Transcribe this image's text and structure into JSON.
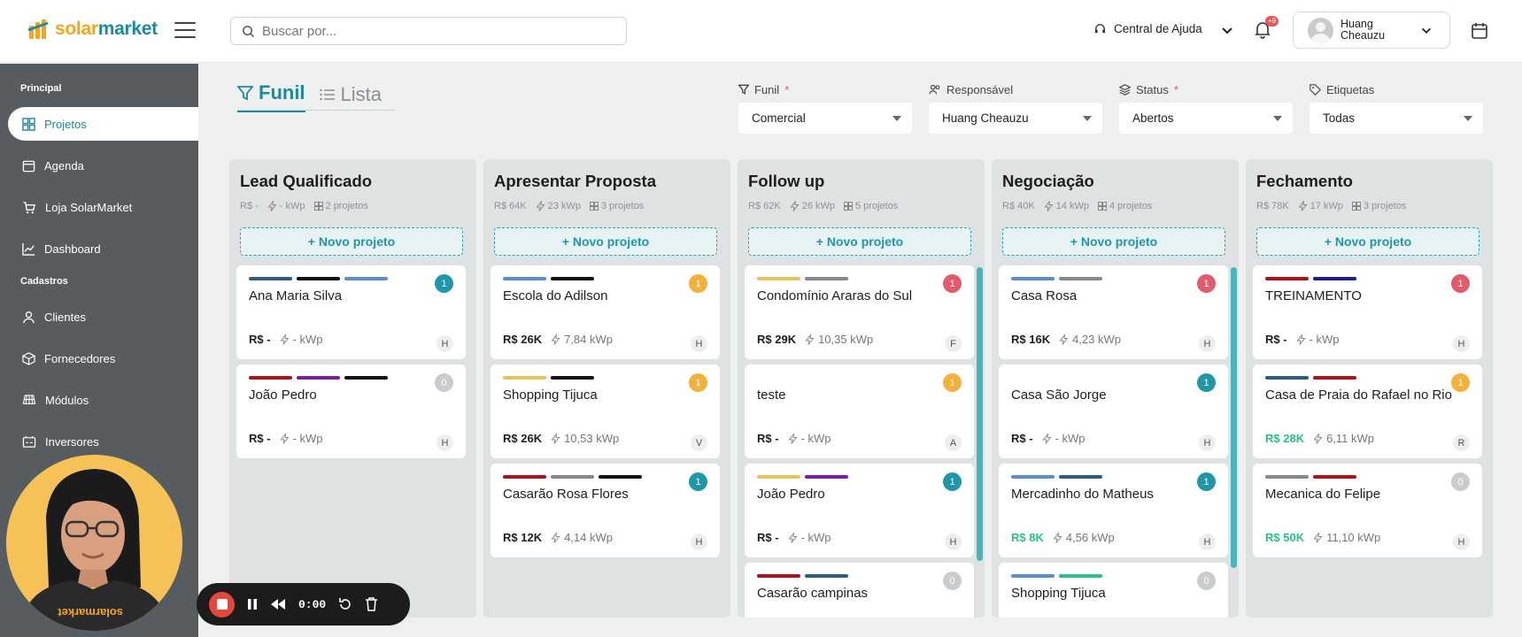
{
  "header": {
    "logo_text_1": "solar",
    "logo_text_2": "market",
    "search_placeholder": "Buscar por...",
    "help_label": "Central de Ajuda",
    "notification_count": "+9",
    "user_name": "Huang Cheauzu"
  },
  "sidebar": {
    "section_principal": "Principal",
    "section_cadastros": "Cadastros",
    "items": [
      {
        "label": "Projetos",
        "icon": "grid-icon"
      },
      {
        "label": "Agenda",
        "icon": "calendar-icon"
      },
      {
        "label": "Loja SolarMarket",
        "icon": "cart-icon"
      },
      {
        "label": "Dashboard",
        "icon": "chart-icon"
      },
      {
        "label": "Clientes",
        "icon": "person-icon"
      },
      {
        "label": "Fornecedores",
        "icon": "box-icon"
      },
      {
        "label": "Módulos",
        "icon": "solar-panel-icon"
      },
      {
        "label": "Inversores",
        "icon": "inverter-icon"
      }
    ]
  },
  "view_tabs": {
    "funil": "Funil",
    "lista": "Lista"
  },
  "filters": {
    "funil": {
      "label": "Funil",
      "value": "Comercial"
    },
    "responsavel": {
      "label": "Responsável",
      "value": "Huang Cheauzu"
    },
    "status": {
      "label": "Status",
      "value": "Abertos"
    },
    "etiquetas": {
      "label": "Etiquetas",
      "value": "Todas"
    }
  },
  "new_project_label": "+ Novo projeto",
  "colors": {
    "accent": "#1c8a9a",
    "sidebar": "#565c60"
  },
  "columns": [
    {
      "title": "Lead Qualificado",
      "value": "R$ -",
      "kwp": "- kWp",
      "count": "2 projetos",
      "cards": [
        {
          "name": "Ana Maria Silva",
          "value": "R$ -",
          "kwp": "- kWp",
          "badge": "1",
          "initial": "H"
        },
        {
          "name": "João Pedro",
          "value": "R$ -",
          "kwp": "- kWp",
          "badge": "0",
          "initial": "H"
        }
      ]
    },
    {
      "title": "Apresentar Proposta",
      "value": "R$ 64K",
      "kwp": "23 kWp",
      "count": "3 projetos",
      "cards": [
        {
          "name": "Escola do Adilson",
          "value": "R$ 26K",
          "kwp": "7,84 kWp",
          "badge": "1",
          "initial": "H"
        },
        {
          "name": "Shopping Tijuca",
          "value": "R$ 26K",
          "kwp": "10,53 kWp",
          "badge": "1",
          "initial": "V"
        },
        {
          "name": "Casarão Rosa Flores",
          "value": "R$ 12K",
          "kwp": "4,14 kWp",
          "badge": "1",
          "initial": "H"
        }
      ]
    },
    {
      "title": "Follow up",
      "value": "R$ 62K",
      "kwp": "26 kWp",
      "count": "5 projetos",
      "cards": [
        {
          "name": "Condomínio Araras do Sul",
          "value": "R$ 29K",
          "kwp": "10,35 kWp",
          "badge": "1",
          "initial": "F"
        },
        {
          "name": "teste",
          "value": "R$ -",
          "kwp": "- kWp",
          "badge": "1",
          "initial": "A"
        },
        {
          "name": "João Pedro",
          "value": "R$ -",
          "kwp": "- kWp",
          "badge": "1",
          "initial": "H"
        },
        {
          "name": "Casarão campinas",
          "badge": "0"
        }
      ]
    },
    {
      "title": "Negociação",
      "value": "R$ 40K",
      "kwp": "14 kWp",
      "count": "4 projetos",
      "cards": [
        {
          "name": "Casa Rosa",
          "value": "R$ 16K",
          "kwp": "4,23 kWp",
          "badge": "1",
          "initial": "H"
        },
        {
          "name": "Casa São Jorge",
          "value": "R$ -",
          "kwp": "- kWp",
          "badge": "1",
          "initial": "H"
        },
        {
          "name": "Mercadinho do Matheus",
          "value": "R$ 8K",
          "kwp": "4,56 kWp",
          "badge": "1",
          "initial": "H"
        },
        {
          "name": "Shopping Tijuca",
          "badge": "0"
        }
      ]
    },
    {
      "title": "Fechamento",
      "value": "R$ 78K",
      "kwp": "17 kWp",
      "count": "3 projetos",
      "cards": [
        {
          "name": "TREINAMENTO",
          "value": "R$ -",
          "kwp": "- kWp",
          "badge": "1",
          "initial": "H"
        },
        {
          "name": "Casa de Praia do Rafael no Rio",
          "value": "R$ 28K",
          "kwp": "6,11 kWp",
          "badge": "1",
          "initial": "R"
        },
        {
          "name": "Mecanica do Felipe",
          "value": "R$ 50K",
          "kwp": "11,10 kWp",
          "badge": "0",
          "initial": "H"
        }
      ]
    }
  ],
  "recorder": {
    "time": "0:00"
  }
}
